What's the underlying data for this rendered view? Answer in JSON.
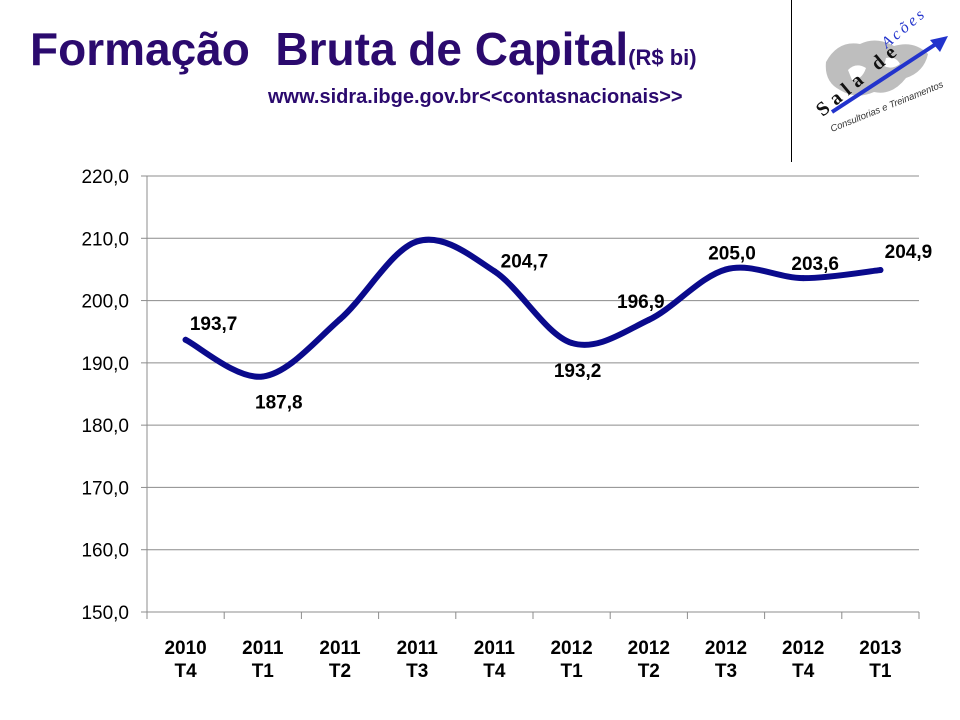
{
  "header": {
    "title": "Formação  Bruta de Capital",
    "title_unit": "(R$ bi)",
    "subtitle": "www.sidra.ibge.gov.br<<contasnacionais>>"
  },
  "logo": {
    "word": "Sala de",
    "word_accent": "Acões",
    "tagline": "Consultorias e Treinamentos"
  },
  "colors": {
    "title": "#2b0a6e",
    "line": "#0a0a8c",
    "logo_blue": "#2233cc"
  },
  "chart_data": {
    "type": "line",
    "categories": [
      [
        "2010",
        "T4"
      ],
      [
        "2011",
        "T1"
      ],
      [
        "2011",
        "T2"
      ],
      [
        "2011",
        "T3"
      ],
      [
        "2011",
        "T4"
      ],
      [
        "2012",
        "T1"
      ],
      [
        "2012",
        "T2"
      ],
      [
        "2012",
        "T3"
      ],
      [
        "2012",
        "T4"
      ],
      [
        "2013",
        "T1"
      ]
    ],
    "series": [
      {
        "values": [
          193.7,
          187.8,
          197.0,
          209.5,
          204.7,
          193.2,
          196.9,
          205.0,
          203.6,
          204.9
        ],
        "labels": [
          "193,7",
          "187,8",
          "",
          "",
          "204,7",
          "193,2",
          "196,9",
          "205,0",
          "203,6",
          "204,9"
        ]
      }
    ],
    "ylim": [
      150,
      220
    ],
    "ytick_labels": [
      "150,0",
      "160,0",
      "170,0",
      "180,0",
      "190,0",
      "200,0",
      "210,0",
      "220,0"
    ],
    "ytick_values": [
      150,
      160,
      170,
      180,
      190,
      200,
      210,
      220
    ],
    "grid": true,
    "xlabel": "",
    "ylabel": ""
  }
}
